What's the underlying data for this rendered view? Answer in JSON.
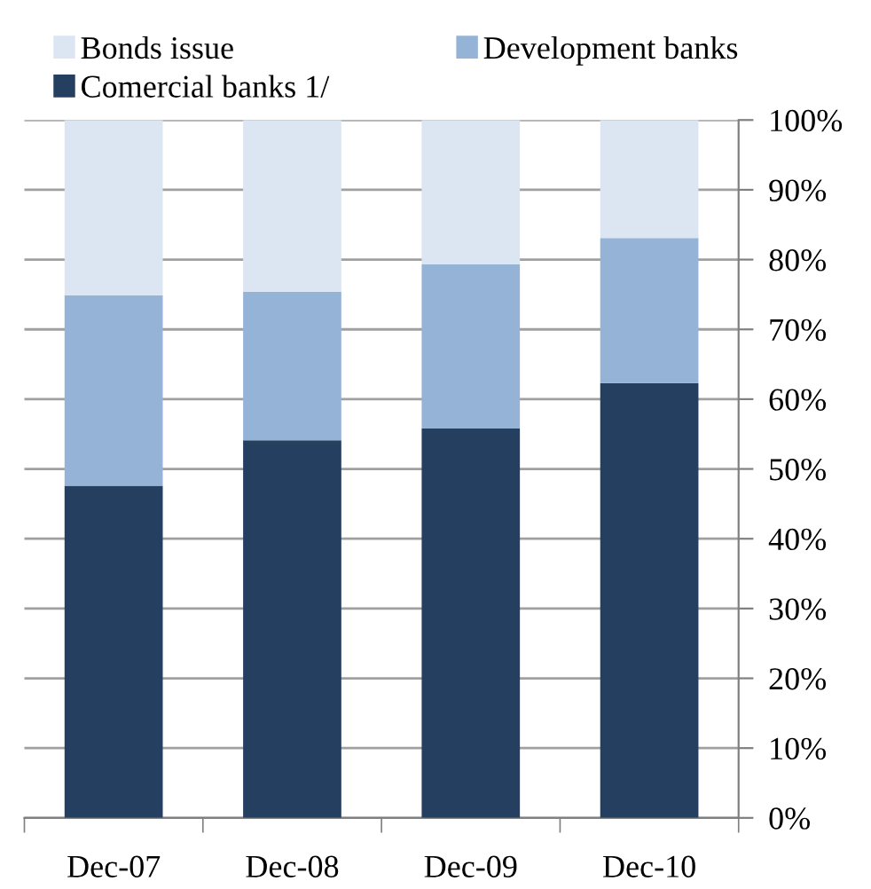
{
  "chart_data": {
    "type": "bar",
    "stacked": true,
    "categories": [
      "Dec-07",
      "Dec-08",
      "Dec-09",
      "Dec-10"
    ],
    "series": [
      {
        "name": "Comercial banks 1/",
        "color": "#253f60",
        "values": [
          47.6,
          54.1,
          55.8,
          62.3
        ]
      },
      {
        "name": "Development banks",
        "color": "#95b3d7",
        "values": [
          27.3,
          21.3,
          23.5,
          20.8
        ]
      },
      {
        "name": "Bonds issue",
        "color": "#dce6f2",
        "values": [
          25.1,
          24.6,
          20.7,
          16.9
        ]
      }
    ],
    "ylim": [
      0,
      100
    ],
    "yticks": [
      {
        "value": 0,
        "label": "0%"
      },
      {
        "value": 10,
        "label": "10%"
      },
      {
        "value": 20,
        "label": "20%"
      },
      {
        "value": 30,
        "label": "30%"
      },
      {
        "value": 40,
        "label": "40%"
      },
      {
        "value": 50,
        "label": "50%"
      },
      {
        "value": 60,
        "label": "60%"
      },
      {
        "value": 70,
        "label": "70%"
      },
      {
        "value": 80,
        "label": "80%"
      },
      {
        "value": 90,
        "label": "90%"
      },
      {
        "value": 100,
        "label": "100%"
      }
    ],
    "grid": "y",
    "legend": "top"
  }
}
